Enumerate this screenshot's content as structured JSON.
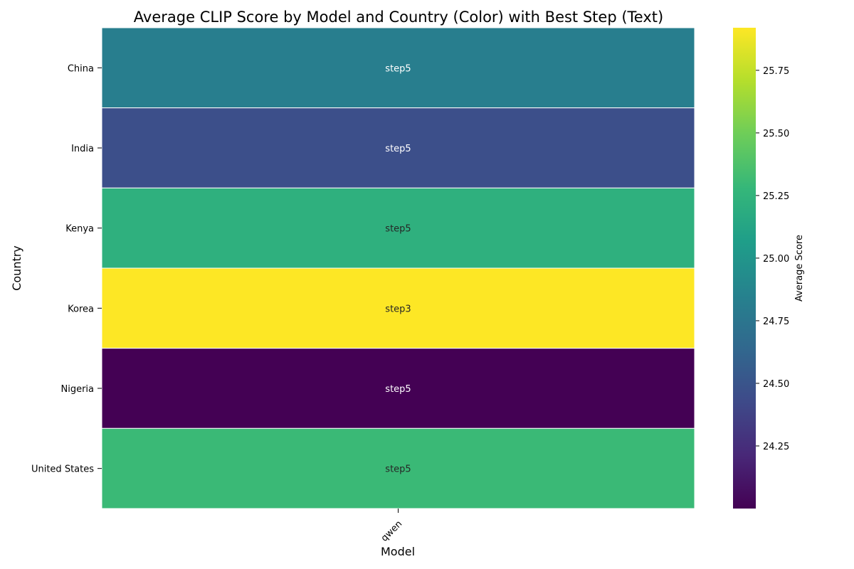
{
  "chart_data": {
    "type": "heatmap",
    "title": "Average CLIP Score by Model and Country (Color) with Best Step (Text)",
    "xlabel": "Model",
    "ylabel": "Country",
    "x_categories": [
      "qwen"
    ],
    "y_categories": [
      "China",
      "India",
      "Kenya",
      "Korea",
      "Nigeria",
      "United States"
    ],
    "values": [
      [
        24.82
      ],
      [
        24.46
      ],
      [
        25.22
      ],
      [
        25.92
      ],
      [
        24.0
      ],
      [
        25.3
      ]
    ],
    "annotations": [
      [
        "step5"
      ],
      [
        "step5"
      ],
      [
        "step5"
      ],
      [
        "step3"
      ],
      [
        "step5"
      ],
      [
        "step5"
      ]
    ],
    "colorscale": "viridis",
    "colorbar": {
      "label": "Average Score",
      "range": [
        24.0,
        25.92
      ],
      "ticks": [
        24.25,
        24.5,
        24.75,
        25.0,
        25.25,
        25.5,
        25.75
      ],
      "tick_labels": [
        "24.25",
        "24.50",
        "24.75",
        "25.00",
        "25.25",
        "25.50",
        "25.75"
      ]
    },
    "grid": false
  }
}
